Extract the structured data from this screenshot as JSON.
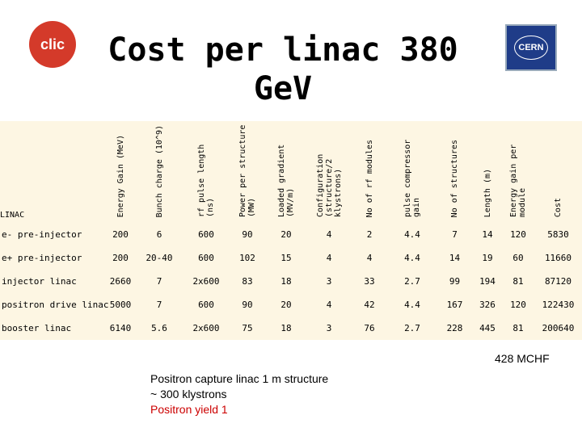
{
  "header": {
    "title": "Cost per linac 380 GeV",
    "logo_left": "clic",
    "logo_right": "CERN"
  },
  "table": {
    "columns": [
      "LINAC",
      "Energy Gain (MeV)",
      "Bunch charge (10^9)",
      "rf pulse length (ns)",
      "Power per structure (MW)",
      "Loaded gradient (MV/m)",
      "Configuration (structure/2 klystrons)",
      "No of rf modules",
      "pulse compressor gain",
      "No of structures",
      "Length (m)",
      "Energy gain per module",
      "Cost"
    ],
    "rows": [
      [
        "e- pre-injector",
        200,
        6,
        600,
        90,
        20,
        4,
        2,
        4.4,
        7,
        14,
        120,
        5830
      ],
      [
        "e+ pre-injector",
        200,
        "20-40",
        600,
        102,
        15,
        4,
        4,
        4.4,
        14,
        19,
        60,
        11660
      ],
      [
        "injector linac",
        2660,
        7,
        "2x600",
        83,
        18,
        3,
        33,
        2.7,
        99,
        194,
        81,
        87120
      ],
      [
        "positron drive linac",
        5000,
        7,
        600,
        90,
        20,
        4,
        42,
        4.4,
        167,
        326,
        120,
        122430
      ],
      [
        "booster linac",
        6140,
        5.6,
        "2x600",
        75,
        18,
        3,
        76,
        2.7,
        228,
        445,
        81,
        200640
      ]
    ],
    "total": "428 MCHF"
  },
  "notes": [
    "Positron capture linac 1 m structure",
    "~ 300 klystrons",
    "Positron yield 1"
  ]
}
